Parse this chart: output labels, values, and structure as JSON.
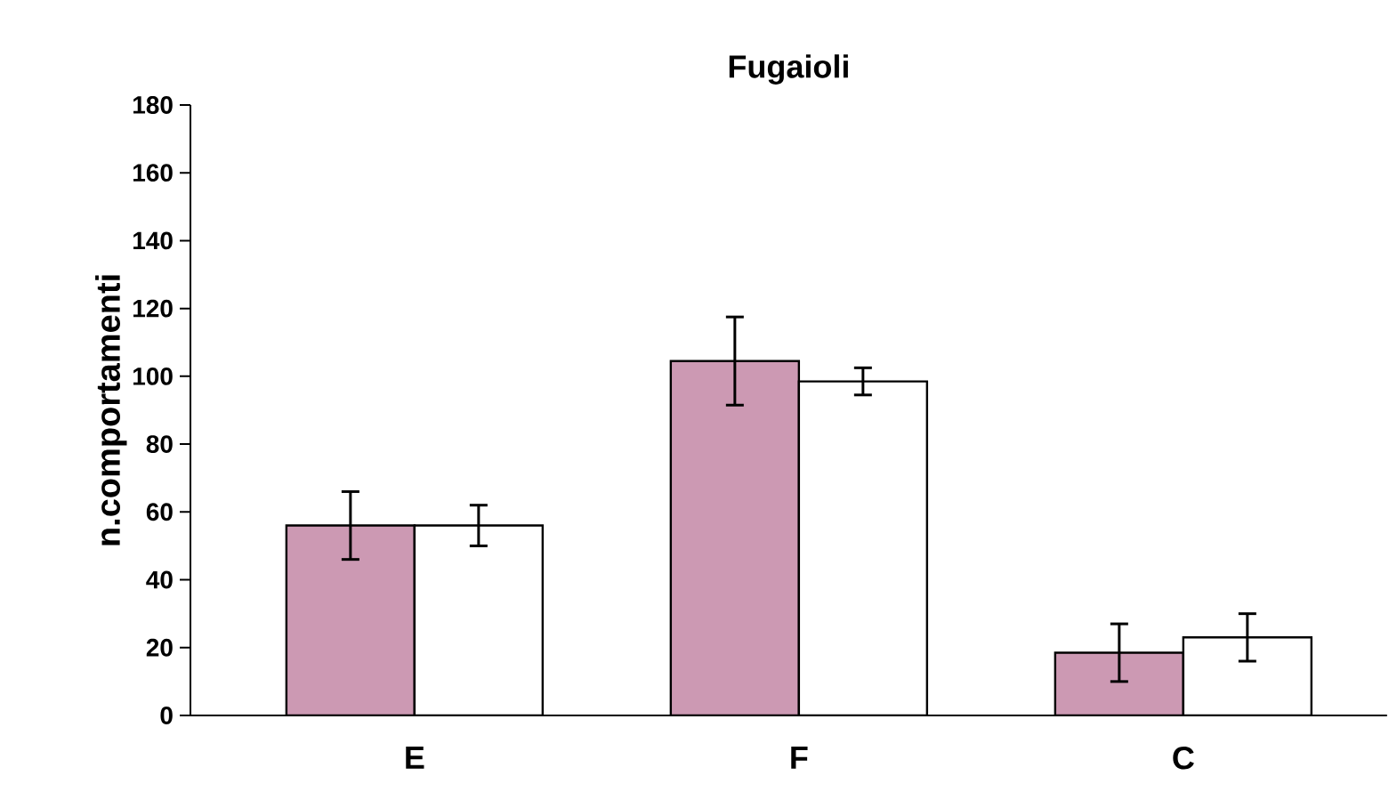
{
  "chart_data": {
    "type": "bar",
    "title": "Fugaioli",
    "ylabel": "n.comportamenti",
    "categories": [
      "E",
      "F",
      "C"
    ],
    "series": [
      {
        "color": "#cc99b3",
        "values": [
          56,
          104.5,
          18.5
        ],
        "errors": [
          10,
          13,
          8.5
        ]
      },
      {
        "color": "#ffffff",
        "values": [
          56,
          98.5,
          23
        ],
        "errors": [
          6,
          4,
          7
        ]
      }
    ],
    "ylim": [
      0,
      180
    ],
    "yticks": [
      0,
      20,
      40,
      60,
      80,
      100,
      120,
      140,
      160,
      180
    ],
    "grid": false
  }
}
